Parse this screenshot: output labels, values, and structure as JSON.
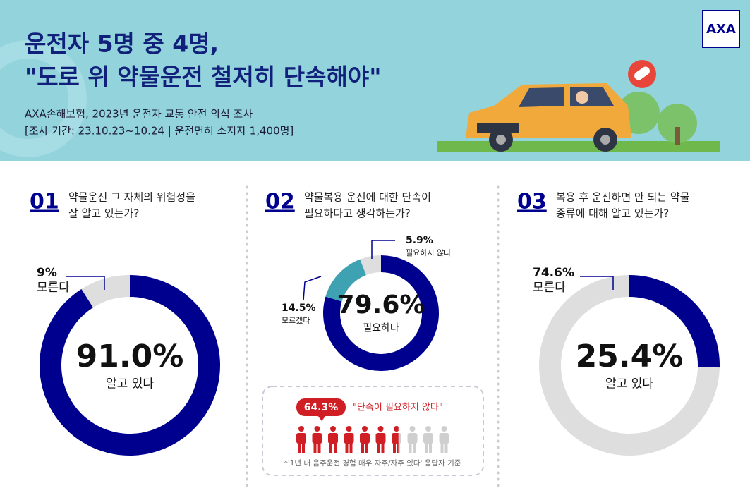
{
  "header": {
    "title": [
      "운전자 5명 중 4명,",
      "\"도로 위 약물운전 철저히 단속해야\""
    ],
    "subtitle": [
      "AXA손해보험, 2023년 운전자 교통 안전 의식 조사",
      "[조사 기간: 23.10.23~10.24 | 운전면허 소지자 1,400명]"
    ],
    "logo": "AXA"
  },
  "chart_data": [
    {
      "type": "pie",
      "number": "01",
      "title": [
        "약물운전 그 자체의 위험성을",
        "잘 알고 있는가?"
      ],
      "categories": [
        "알고 있다",
        "모른다"
      ],
      "values": [
        91.0,
        9
      ],
      "value_labels": [
        "91.0%",
        "9%"
      ],
      "colors": [
        "#00008f",
        "#dedede"
      ]
    },
    {
      "type": "pie",
      "number": "02",
      "title": [
        "약물복용  운전에  대한  단속이",
        "필요하다고 생각하는가?"
      ],
      "categories": [
        "필요하다",
        "모르겠다",
        "필요하지 않다"
      ],
      "values": [
        79.6,
        14.5,
        5.9
      ],
      "value_labels": [
        "79.6%",
        "14.5%",
        "5.9%"
      ],
      "colors": [
        "#00008f",
        "#3fa2b2",
        "#dedede"
      ]
    },
    {
      "type": "pie",
      "number": "03",
      "title": [
        "복용 후 운전하면 안 되는 약물",
        "종류에 대해 알고 있는가?"
      ],
      "categories": [
        "알고 있다",
        "모른다"
      ],
      "values": [
        25.4,
        74.6
      ],
      "value_labels": [
        "25.4%",
        "74.6%"
      ],
      "colors": [
        "#00008f",
        "#dedede"
      ]
    }
  ],
  "icon_stat": {
    "value": 64.3,
    "value_label": "64.3%",
    "label": "\"단속이 필요하지 않다\"",
    "note": "*'1년 내 음주운전 경험 매우 자주/자주 있다' 응답자 기준",
    "color": "#cf1f25"
  }
}
